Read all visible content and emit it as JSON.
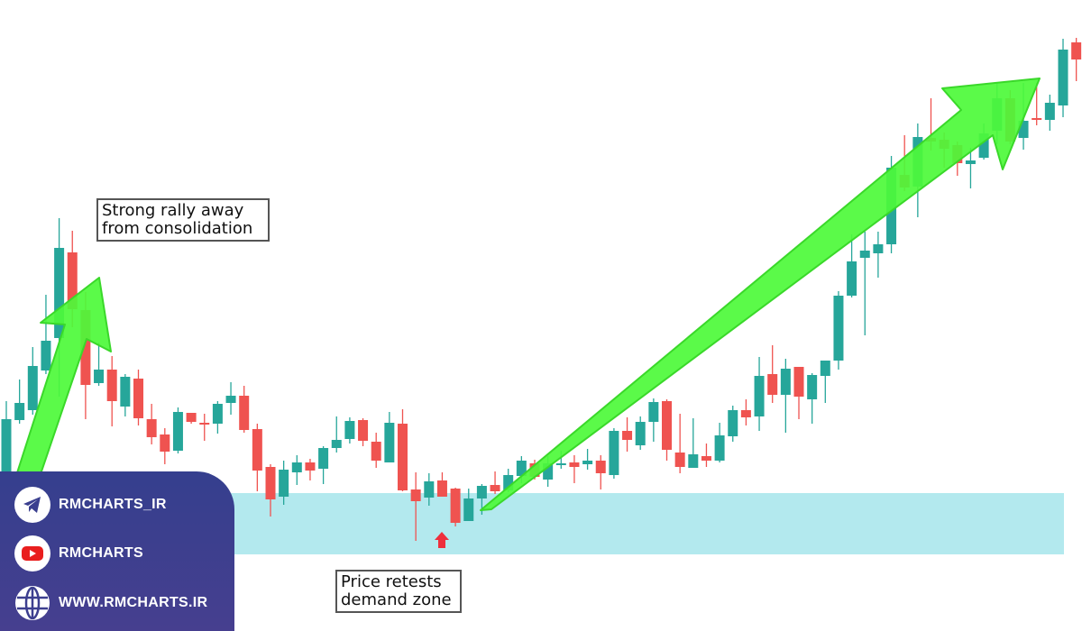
{
  "chart_data": {
    "type": "candlestick",
    "title": "",
    "xlabel": "",
    "ylabel": "",
    "price_units": "relative",
    "ylim": [
      0,
      700
    ],
    "colors": {
      "up": "#26a69a",
      "down": "#ef5350",
      "demand_zone": "#b3e9ee",
      "arrow": "#4dfa3a",
      "arrow_edge": "#3ad82a",
      "marker": "#ee2f3c"
    },
    "demand_zone": {
      "low": 85,
      "high": 153
    },
    "candles_ohlc": [
      [
        155,
        255,
        140,
        235
      ],
      [
        234,
        279,
        230,
        253
      ],
      [
        245,
        315,
        240,
        294
      ],
      [
        289,
        373,
        285,
        322
      ],
      [
        325,
        458,
        260,
        425
      ],
      [
        420,
        444,
        337,
        357
      ],
      [
        356,
        376,
        235,
        273
      ],
      [
        275,
        320,
        272,
        290
      ],
      [
        290,
        305,
        227,
        255
      ],
      [
        249,
        285,
        238,
        282
      ],
      [
        280,
        290,
        228,
        236
      ],
      [
        235,
        252,
        207,
        215
      ],
      [
        218,
        225,
        185,
        199
      ],
      [
        200,
        248,
        197,
        243
      ],
      [
        242,
        242,
        230,
        232
      ],
      [
        231,
        241,
        211,
        229
      ],
      [
        230,
        255,
        219,
        252
      ],
      [
        253,
        276,
        240,
        261
      ],
      [
        261,
        272,
        220,
        223
      ],
      [
        224,
        230,
        155,
        178
      ],
      [
        182,
        185,
        127,
        146
      ],
      [
        149,
        189,
        140,
        179
      ],
      [
        176,
        195,
        162,
        187
      ],
      [
        187,
        191,
        167,
        178
      ],
      [
        180,
        205,
        163,
        203
      ],
      [
        203,
        238,
        198,
        212
      ],
      [
        213,
        237,
        208,
        233
      ],
      [
        234,
        236,
        205,
        211
      ],
      [
        210,
        220,
        181,
        189
      ],
      [
        187,
        243,
        187,
        231
      ],
      [
        230,
        246,
        155,
        156
      ],
      [
        157,
        176,
        100,
        144
      ],
      [
        148,
        175,
        139,
        166
      ],
      [
        167,
        176,
        149,
        149
      ],
      [
        158,
        159,
        116,
        120
      ],
      [
        122,
        158,
        122,
        147
      ],
      [
        147,
        163,
        129,
        161
      ],
      [
        162,
        177,
        152,
        155
      ],
      [
        156,
        180,
        154,
        173
      ],
      [
        172,
        194,
        164,
        189
      ],
      [
        186,
        190,
        168,
        171
      ],
      [
        168,
        194,
        160,
        186
      ],
      [
        185,
        200,
        180,
        186
      ],
      [
        187,
        195,
        164,
        182
      ],
      [
        185,
        202,
        179,
        189
      ],
      [
        189,
        195,
        157,
        175
      ],
      [
        173,
        225,
        169,
        222
      ],
      [
        222,
        237,
        199,
        212
      ],
      [
        206,
        238,
        201,
        232
      ],
      [
        232,
        258,
        210,
        254
      ],
      [
        255,
        257,
        189,
        201
      ],
      [
        198,
        241,
        175,
        182
      ],
      [
        181,
        236,
        181,
        196
      ],
      [
        194,
        208,
        182,
        189
      ],
      [
        189,
        231,
        187,
        217
      ],
      [
        216,
        250,
        210,
        245
      ],
      [
        245,
        257,
        228,
        237
      ],
      [
        238,
        304,
        222,
        283
      ],
      [
        285,
        317,
        253,
        262
      ],
      [
        262,
        302,
        220,
        291
      ],
      [
        293,
        293,
        235,
        260
      ],
      [
        257,
        286,
        230,
        284
      ],
      [
        283,
        300,
        253,
        300
      ],
      [
        300,
        377,
        290,
        372
      ],
      [
        372,
        440,
        370,
        410
      ],
      [
        414,
        443,
        328,
        422
      ],
      [
        419,
        443,
        392,
        429
      ],
      [
        429,
        527,
        419,
        514
      ],
      [
        506,
        550,
        488,
        492
      ],
      [
        493,
        563,
        459,
        548
      ],
      [
        547,
        591,
        533,
        543
      ],
      [
        545,
        553,
        514,
        535
      ],
      [
        539,
        543,
        505,
        519
      ],
      [
        518,
        536,
        491,
        522
      ],
      [
        525,
        563,
        523,
        552
      ],
      [
        555,
        608,
        540,
        591
      ],
      [
        591,
        600,
        540,
        543
      ],
      [
        547,
        608,
        534,
        566
      ],
      [
        569,
        608,
        561,
        567
      ],
      [
        567,
        595,
        555,
        586
      ],
      [
        583,
        657,
        570,
        645
      ],
      [
        653,
        658,
        610,
        634
      ]
    ],
    "annotations": {
      "rally": "Strong rally away\nfrom consolidation",
      "retest": "Price retests\ndemand zone"
    }
  },
  "branding": {
    "telegram": "RMCHARTS_IR",
    "youtube": "RMCHARTS",
    "website": "WWW.RMCHARTS.IR",
    "panel_color": "#3d3f8f"
  }
}
